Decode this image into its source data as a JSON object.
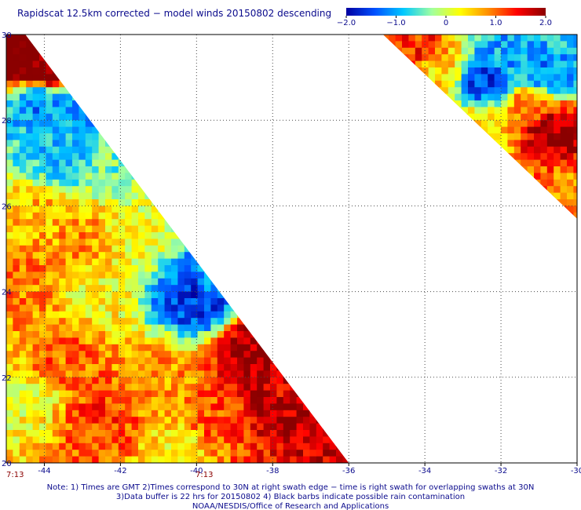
{
  "title": "Rapidscat 12.5km corrected − model winds 20150802 descending",
  "colorbar": {
    "ticks": [
      "−2.0",
      "−1.0",
      "0",
      "1.0",
      "2.0"
    ],
    "range": [
      -2.0,
      2.0
    ],
    "colors": [
      "#0000a0",
      "#0050ff",
      "#00c8ff",
      "#a0ffa0",
      "#ffff00",
      "#ff8c00",
      "#ff0000",
      "#8b0000"
    ]
  },
  "time_labels": [
    "7:13",
    "7:13"
  ],
  "notes": [
    "Note: 1) Times are GMT 2)Times correspond to 30N at right swath edge − time is right swath for overlapping swaths at 30N",
    "3)Data buffer is 22 hrs for 20150802 4) Black barbs indicate possible rain contamination",
    "NOAA/NESDIS/Office of Research and Applications"
  ],
  "chart_data": {
    "type": "heatmap",
    "title": "Rapidscat 12.5km corrected − model winds 20150802 descending",
    "x_tick_labels": [
      "-44",
      "-42",
      "-40",
      "-38",
      "-36",
      "-34",
      "-32",
      "-30"
    ],
    "x_ticks": [
      -44,
      -42,
      -40,
      -38,
      -36,
      -34,
      -32,
      -30
    ],
    "y_tick_labels": [
      "20",
      "22",
      "24",
      "26",
      "28",
      "30"
    ],
    "y_ticks": [
      20,
      22,
      24,
      26,
      28,
      30
    ],
    "xlim": [
      -45,
      -30
    ],
    "ylim": [
      20,
      30
    ],
    "value_range": [
      -2.0,
      2.0
    ],
    "grid": true,
    "regions": [
      {
        "lon": -44.6,
        "lat": 29.4,
        "value": 2.2
      },
      {
        "lon": -44.0,
        "lat": 29.2,
        "value": 2.1
      },
      {
        "lon": -44.2,
        "lat": 28.4,
        "value": -1.2
      },
      {
        "lon": -43.0,
        "lat": 28.2,
        "value": -1.1
      },
      {
        "lon": -43.6,
        "lat": 27.2,
        "value": -0.8
      },
      {
        "lon": -42.2,
        "lat": 27.0,
        "value": -0.4
      },
      {
        "lon": -44.2,
        "lat": 25.8,
        "value": 0.6
      },
      {
        "lon": -43.0,
        "lat": 25.2,
        "value": 0.8
      },
      {
        "lon": -41.6,
        "lat": 25.4,
        "value": 0.2
      },
      {
        "lon": -44.4,
        "lat": 24.2,
        "value": 0.9
      },
      {
        "lon": -42.8,
        "lat": 24.0,
        "value": 0.3
      },
      {
        "lon": -40.0,
        "lat": 23.8,
        "value": -1.6
      },
      {
        "lon": -39.5,
        "lat": 24.3,
        "value": -1.2
      },
      {
        "lon": -38.5,
        "lat": 22.7,
        "value": 1.9
      },
      {
        "lon": -38.0,
        "lat": 21.5,
        "value": 1.6
      },
      {
        "lon": -37.4,
        "lat": 21.2,
        "value": 1.8
      },
      {
        "lon": -41.0,
        "lat": 22.0,
        "value": 0.8
      },
      {
        "lon": -42.5,
        "lat": 21.0,
        "value": 1.2
      },
      {
        "lon": -43.5,
        "lat": 22.4,
        "value": 1.0
      },
      {
        "lon": -44.5,
        "lat": 21.5,
        "value": 0.2
      },
      {
        "lon": -39.5,
        "lat": 21.0,
        "value": 1.1
      },
      {
        "lon": -40.5,
        "lat": 20.4,
        "value": 0.4
      },
      {
        "lon": -34.2,
        "lat": 29.7,
        "value": 1.3
      },
      {
        "lon": -33.6,
        "lat": 29.2,
        "value": 0.5
      },
      {
        "lon": -32.4,
        "lat": 28.9,
        "value": -1.6
      },
      {
        "lon": -31.8,
        "lat": 29.4,
        "value": -1.0
      },
      {
        "lon": -30.8,
        "lat": 29.0,
        "value": -1.2
      },
      {
        "lon": -30.6,
        "lat": 27.8,
        "value": 1.9
      },
      {
        "lon": -31.2,
        "lat": 28.4,
        "value": 1.0
      },
      {
        "lon": -32.5,
        "lat": 27.9,
        "value": 0.4
      },
      {
        "lon": -30.4,
        "lat": 26.2,
        "value": 0.9
      }
    ]
  }
}
